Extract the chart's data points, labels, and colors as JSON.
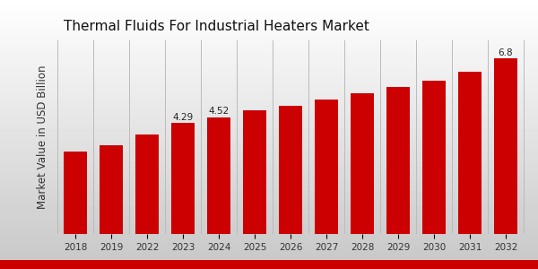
{
  "title": "Thermal Fluids For Industrial Heaters Market",
  "ylabel": "Market Value in USD Billion",
  "categories": [
    "2018",
    "2019",
    "2022",
    "2023",
    "2024",
    "2025",
    "2026",
    "2027",
    "2028",
    "2029",
    "2030",
    "2031",
    "2032"
  ],
  "values": [
    3.2,
    3.45,
    3.85,
    4.29,
    4.52,
    4.78,
    4.95,
    5.2,
    5.45,
    5.7,
    5.95,
    6.3,
    6.8
  ],
  "bar_color": "#cc0000",
  "bar_labels": [
    "",
    "",
    "",
    "4.29",
    "4.52",
    "",
    "",
    "",
    "",
    "",
    "",
    "",
    "6.8"
  ],
  "bg_top_color": "#ffffff",
  "bg_bottom_color": "#d0d0d0",
  "title_fontsize": 11,
  "label_fontsize": 7.5,
  "ylabel_fontsize": 8.5,
  "ylim": [
    0,
    7.5
  ],
  "grid_color": "#c8c8c8",
  "bottom_bar_color": "#cc0000"
}
